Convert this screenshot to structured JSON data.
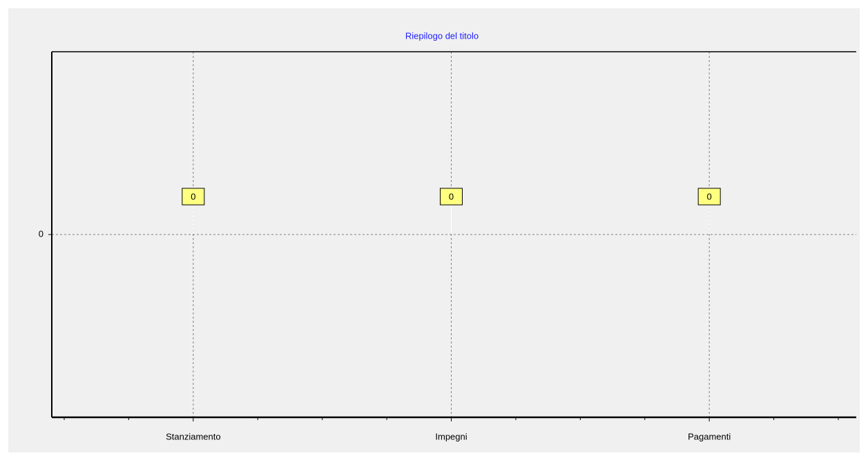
{
  "chart_data": {
    "type": "bar",
    "title": "Riepilogo del titolo",
    "categories": [
      "Stanziamento",
      "Impegni",
      "Pagamenti"
    ],
    "values": [
      0,
      0,
      0
    ],
    "colors": [
      "#f2f23a",
      "#e01010",
      "#108010"
    ],
    "ylim": [
      -1,
      1
    ],
    "yticks": [
      0
    ],
    "grid": true
  }
}
